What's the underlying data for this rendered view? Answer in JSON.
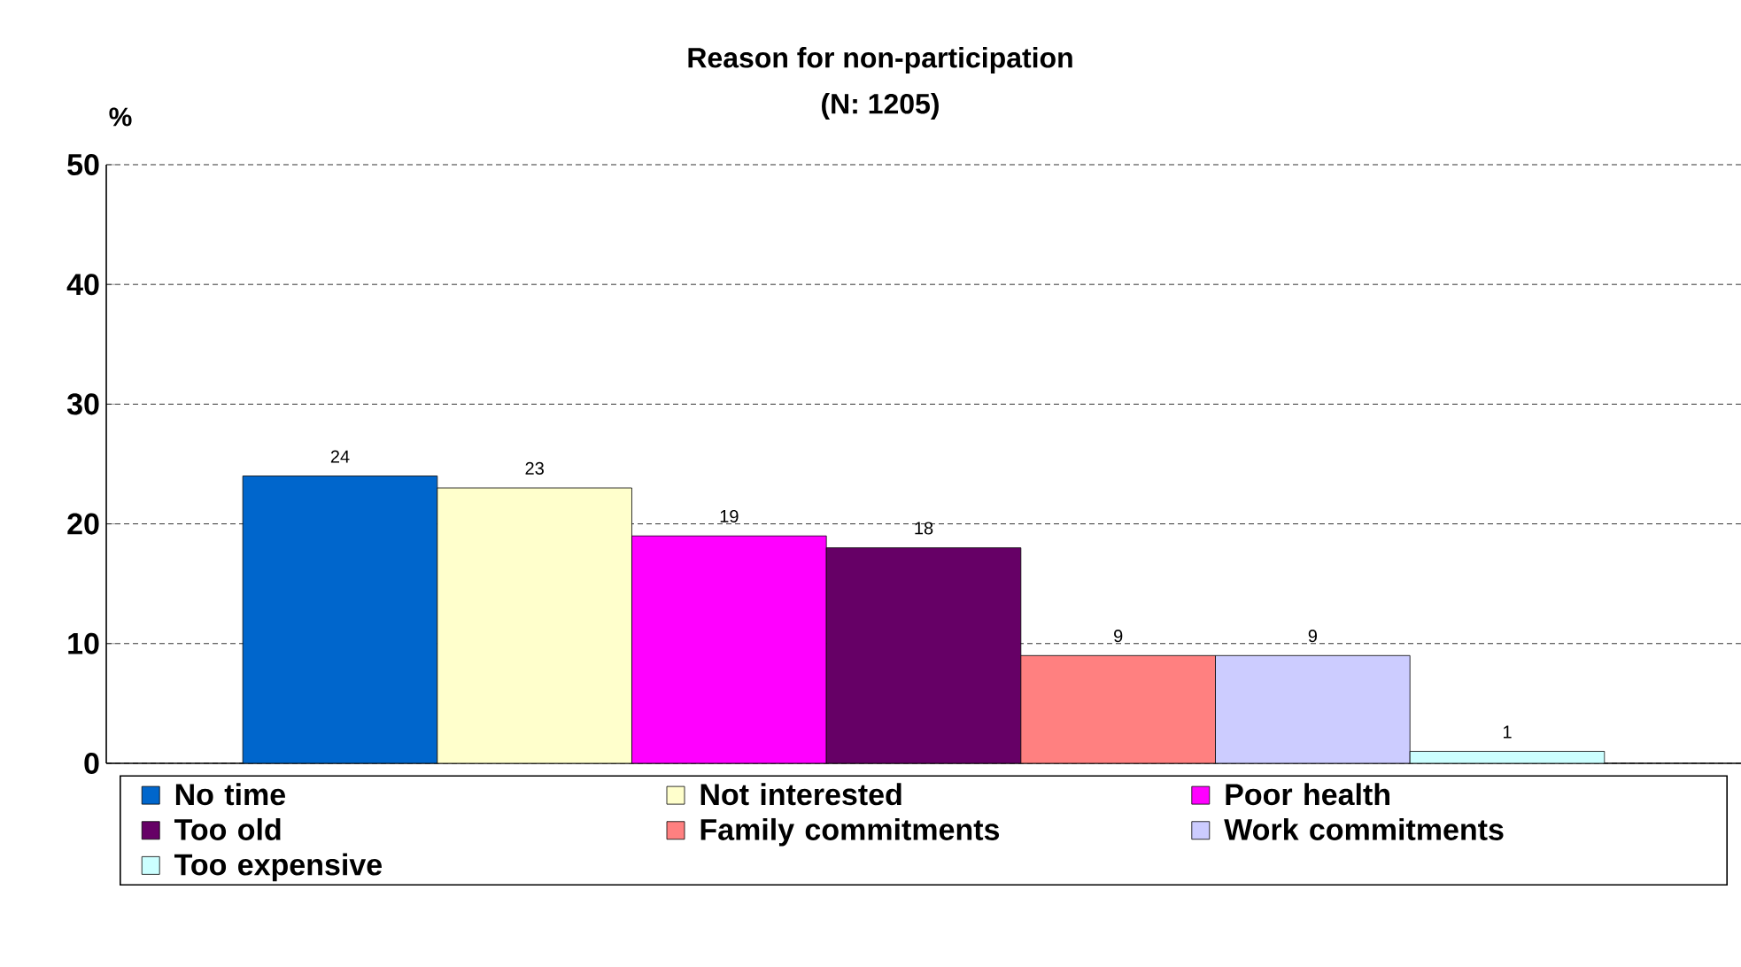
{
  "chart_data": {
    "type": "bar",
    "title": "Reason for non-participation",
    "subtitle": "(N: 1205)",
    "ylabel": "%",
    "categories": [
      null
    ],
    "series": [
      {
        "name": "No time",
        "color": "#0066cc",
        "values": [
          24
        ]
      },
      {
        "name": "Not interested",
        "color": "#ffffcc",
        "values": [
          23
        ]
      },
      {
        "name": "Poor health",
        "color": "#ff00ff",
        "values": [
          19
        ]
      },
      {
        "name": "Too old",
        "color": "#660066",
        "values": [
          18
        ]
      },
      {
        "name": "Family commitments",
        "color": "#ff8080",
        "values": [
          9
        ]
      },
      {
        "name": "Work commitments",
        "color": "#ccccff",
        "values": [
          9
        ]
      },
      {
        "name": "Too expensive",
        "color": "#ccffff",
        "values": [
          1
        ]
      }
    ],
    "ylim": [
      0,
      50
    ],
    "yticks": [
      0,
      10,
      20,
      30,
      40,
      50
    ],
    "grid": "y",
    "legend": "bottom",
    "data_labels": true
  }
}
